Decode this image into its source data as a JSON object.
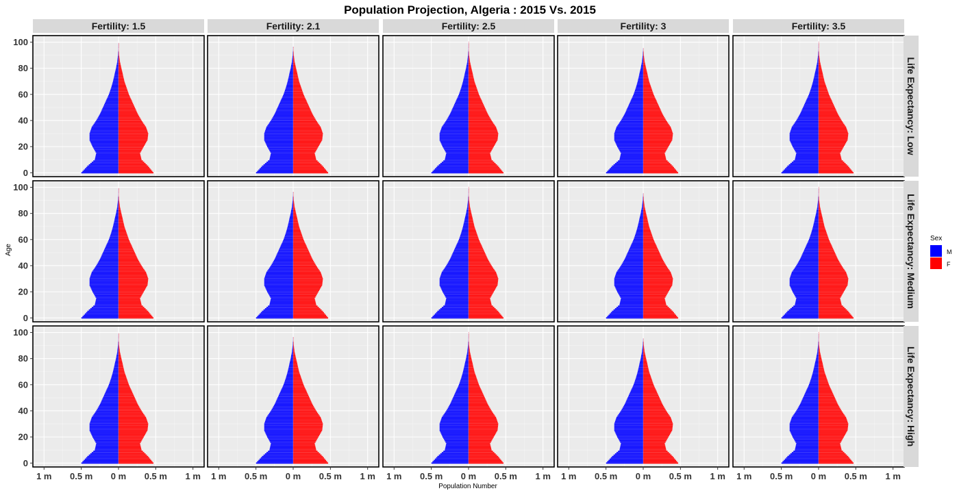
{
  "chart_data": {
    "type": "bar",
    "subtype": "population-pyramid-facet-grid",
    "title": "Population Projection, Algeria : 2015 Vs. 2015",
    "xlabel": "Population Number",
    "ylabel": "Age",
    "xlim": [
      -1.15,
      1.15
    ],
    "ylim": [
      -3,
      105
    ],
    "x_unit": "millions",
    "x_ticks": [
      -1,
      -0.5,
      0,
      0.5,
      1
    ],
    "x_tick_labels": [
      "1 m",
      "0.5 m",
      "0 m",
      "0.5 m",
      "1 m"
    ],
    "y_ticks": [
      0,
      20,
      40,
      60,
      80,
      100
    ],
    "y_tick_labels": [
      "0",
      "20",
      "40",
      "60",
      "80",
      "100"
    ],
    "grid": true,
    "columns": [
      "Fertility: 1.5",
      "Fertility: 2.1",
      "Fertility: 2.5",
      "Fertility: 3",
      "Fertility: 3.5"
    ],
    "rows": [
      "Life Expectancy: Low",
      "Life Expectancy: Medium",
      "Life Expectancy: High"
    ],
    "legend": {
      "title": "Sex",
      "position": "right",
      "entries": [
        {
          "label": "M",
          "color": "#0000ff"
        },
        {
          "label": "F",
          "color": "#ff0000"
        }
      ]
    },
    "age_profile": {
      "ages": [
        0,
        5,
        10,
        15,
        20,
        25,
        30,
        35,
        40,
        45,
        50,
        55,
        60,
        65,
        70,
        75,
        80,
        85,
        90,
        95,
        100
      ],
      "male": [
        0.5,
        0.42,
        0.32,
        0.3,
        0.35,
        0.39,
        0.39,
        0.36,
        0.3,
        0.25,
        0.21,
        0.17,
        0.13,
        0.1,
        0.075,
        0.055,
        0.035,
        0.018,
        0.008,
        0.003,
        0.001
      ],
      "female": [
        0.47,
        0.4,
        0.31,
        0.29,
        0.34,
        0.39,
        0.4,
        0.37,
        0.31,
        0.26,
        0.22,
        0.18,
        0.14,
        0.11,
        0.08,
        0.06,
        0.04,
        0.02,
        0.009,
        0.004,
        0.001
      ]
    },
    "max_age_by_column": [
      99,
      96,
      100,
      95,
      100
    ]
  }
}
